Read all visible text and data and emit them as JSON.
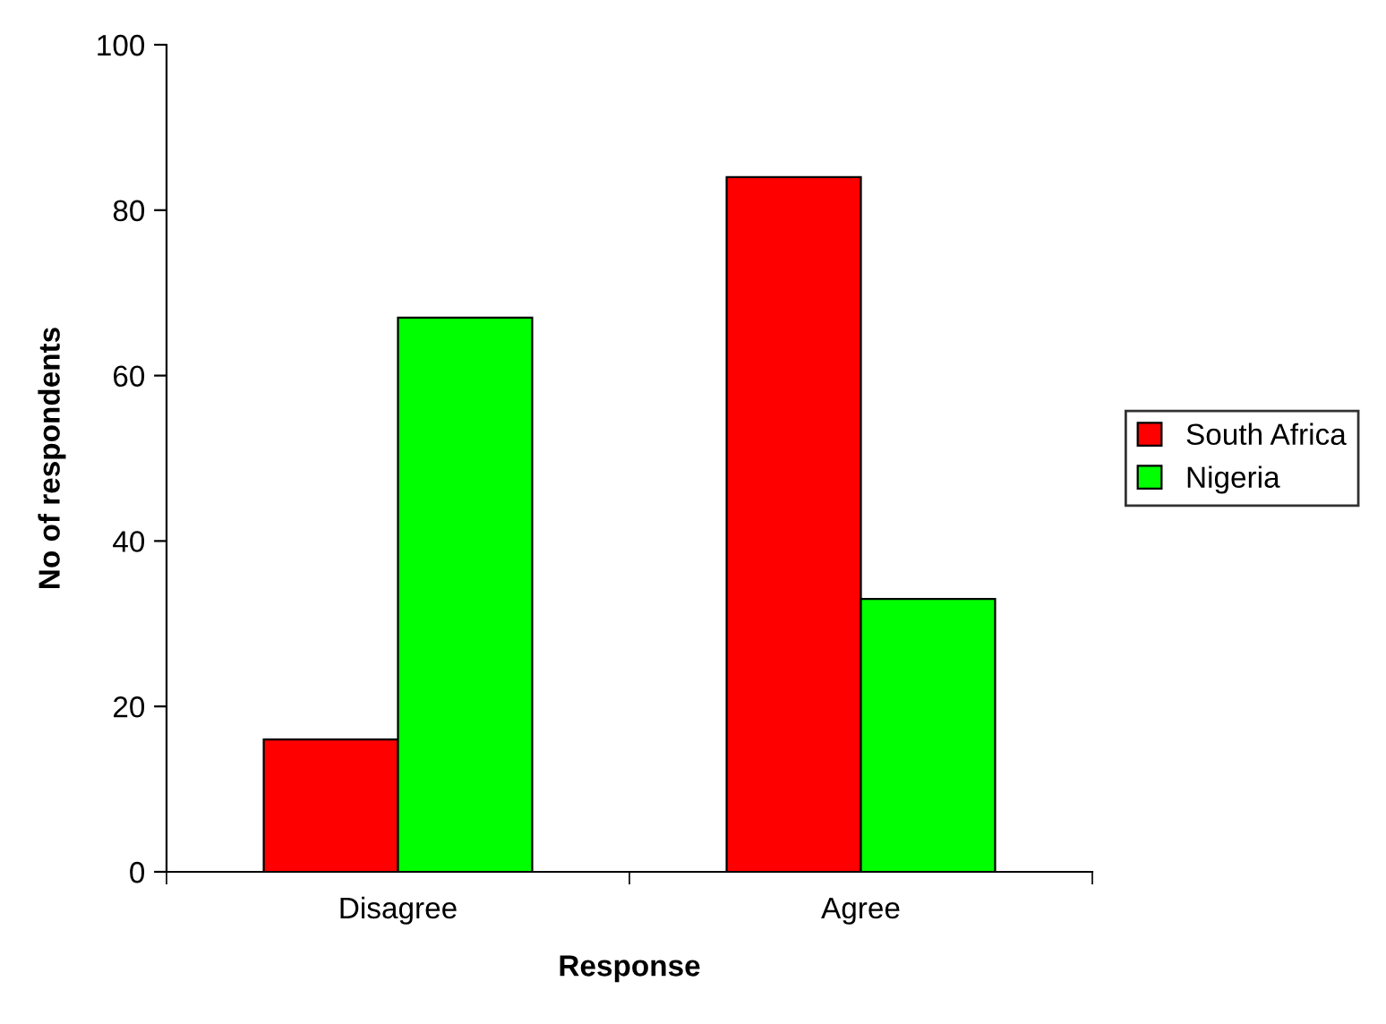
{
  "chart_data": {
    "type": "bar",
    "xlabel": "Response",
    "ylabel": "No of respondents",
    "categories": [
      "Disagree",
      "Agree"
    ],
    "series": [
      {
        "name": "South Africa",
        "color": "#ff0000",
        "values": [
          16,
          84
        ]
      },
      {
        "name": "Nigeria",
        "color": "#00ff00",
        "values": [
          67,
          33
        ]
      }
    ],
    "ylim": [
      0,
      100
    ],
    "yticks": [
      0,
      20,
      40,
      60,
      80,
      100
    ],
    "grid": false,
    "legend": "right"
  }
}
